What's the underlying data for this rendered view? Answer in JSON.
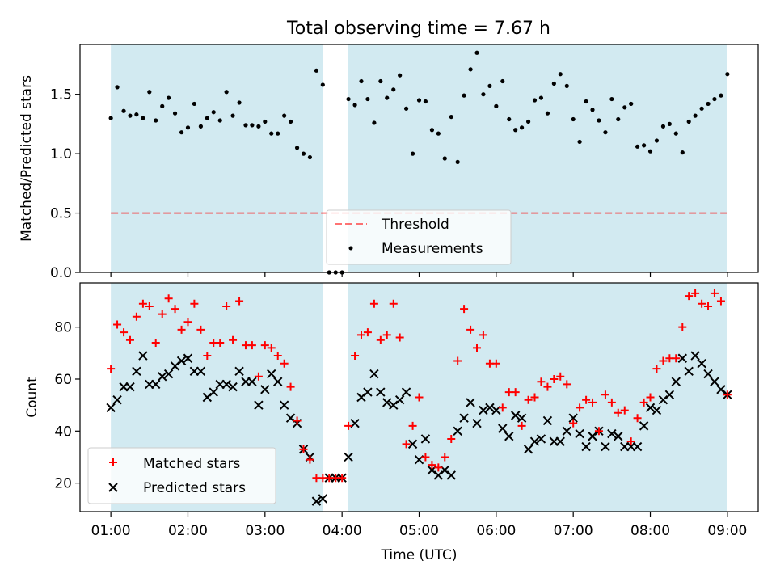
{
  "title": "Total observing time = 7.67 h",
  "colors": {
    "shade": "#add8e6",
    "threshold": "#ff0000",
    "measurements": "#000000",
    "matched": "#ff0000",
    "predicted": "#000000"
  },
  "chart_data": [
    {
      "type": "scatter",
      "ylabel": "Matched/Predicted stars",
      "xlim": [
        0.6,
        9.4
      ],
      "ylim": [
        0,
        1.92
      ],
      "yticks": [
        "0.0",
        "0.5",
        "1.0",
        "1.5"
      ],
      "ytick_values": [
        0,
        0.5,
        1.0,
        1.5
      ],
      "shaded_intervals": [
        [
          1.0,
          3.75
        ],
        [
          4.08,
          9.0
        ]
      ],
      "threshold": {
        "name": "Threshold",
        "y": 0.5,
        "x": [
          1.0,
          9.0
        ]
      },
      "legend": [
        "Threshold",
        "Measurements"
      ],
      "legend_position": "lower-center",
      "series": [
        {
          "name": "Measurements",
          "x": [
            1.0,
            1.083,
            1.167,
            1.25,
            1.333,
            1.417,
            1.5,
            1.583,
            1.667,
            1.75,
            1.833,
            1.917,
            2.0,
            2.083,
            2.167,
            2.25,
            2.333,
            2.417,
            2.5,
            2.583,
            2.667,
            2.75,
            2.833,
            2.917,
            3.0,
            3.083,
            3.167,
            3.25,
            3.333,
            3.417,
            3.5,
            3.583,
            3.667,
            3.75,
            3.833,
            3.917,
            4.0,
            4.083,
            4.167,
            4.25,
            4.333,
            4.417,
            4.5,
            4.583,
            4.667,
            4.75,
            4.833,
            4.917,
            5.0,
            5.083,
            5.167,
            5.25,
            5.333,
            5.417,
            5.5,
            5.583,
            5.667,
            5.75,
            5.833,
            5.917,
            6.0,
            6.083,
            6.167,
            6.25,
            6.333,
            6.417,
            6.5,
            6.583,
            6.667,
            6.75,
            6.833,
            6.917,
            7.0,
            7.083,
            7.167,
            7.25,
            7.333,
            7.417,
            7.5,
            7.583,
            7.667,
            7.75,
            7.833,
            7.917,
            8.0,
            8.083,
            8.167,
            8.25,
            8.333,
            8.417,
            8.5,
            8.583,
            8.667,
            8.75,
            8.833,
            8.917,
            9.0
          ],
          "y": [
            1.3,
            1.56,
            1.36,
            1.32,
            1.33,
            1.3,
            1.52,
            1.28,
            1.4,
            1.47,
            1.34,
            1.18,
            1.22,
            1.42,
            1.23,
            1.3,
            1.35,
            1.28,
            1.52,
            1.32,
            1.43,
            1.24,
            1.24,
            1.23,
            1.27,
            1.17,
            1.17,
            1.32,
            1.27,
            1.05,
            1.0,
            0.97,
            1.7,
            1.58,
            0.0,
            0.0,
            0.0,
            1.46,
            1.41,
            1.61,
            1.46,
            1.26,
            1.61,
            1.47,
            1.54,
            1.66,
            1.38,
            1.0,
            1.45,
            1.44,
            1.2,
            1.17,
            0.96,
            1.31,
            0.93,
            1.49,
            1.71,
            1.85,
            1.5,
            1.57,
            1.4,
            1.61,
            1.29,
            1.2,
            1.22,
            1.27,
            1.45,
            1.47,
            1.34,
            1.59,
            1.67,
            1.57,
            1.29,
            1.1,
            1.44,
            1.37,
            1.28,
            1.18,
            1.46,
            1.29,
            1.39,
            1.42,
            1.06,
            1.07,
            1.02,
            1.11,
            1.23,
            1.25,
            1.17,
            1.01,
            1.27,
            1.32,
            1.38,
            1.42,
            1.46,
            1.49,
            1.67
          ]
        }
      ]
    },
    {
      "type": "scatter",
      "xlabel": "Time (UTC)",
      "ylabel": "Count",
      "xlim": [
        0.6,
        9.4
      ],
      "ylim": [
        9,
        97
      ],
      "yticks": [
        "20",
        "40",
        "60",
        "80"
      ],
      "ytick_values": [
        20,
        40,
        60,
        80
      ],
      "xticks": [
        "01:00",
        "02:00",
        "03:00",
        "04:00",
        "05:00",
        "06:00",
        "07:00",
        "08:00",
        "09:00"
      ],
      "xtick_values": [
        1,
        2,
        3,
        4,
        5,
        6,
        7,
        8,
        9
      ],
      "shaded_intervals": [
        [
          1.0,
          3.75
        ],
        [
          4.08,
          9.0
        ]
      ],
      "legend": [
        "Matched stars",
        "Predicted stars"
      ],
      "legend_position": "lower-left",
      "series": [
        {
          "name": "Matched stars",
          "marker": "plus",
          "x": [
            1.0,
            1.083,
            1.167,
            1.25,
            1.333,
            1.417,
            1.5,
            1.583,
            1.667,
            1.75,
            1.833,
            1.917,
            2.0,
            2.083,
            2.167,
            2.25,
            2.333,
            2.417,
            2.5,
            2.583,
            2.667,
            2.75,
            2.833,
            2.917,
            3.0,
            3.083,
            3.167,
            3.25,
            3.333,
            3.417,
            3.5,
            3.583,
            3.667,
            3.75,
            3.833,
            3.917,
            4.0,
            4.083,
            4.167,
            4.25,
            4.333,
            4.417,
            4.5,
            4.583,
            4.667,
            4.75,
            4.833,
            4.917,
            5.0,
            5.083,
            5.167,
            5.25,
            5.333,
            5.417,
            5.5,
            5.583,
            5.667,
            5.75,
            5.833,
            5.917,
            6.0,
            6.083,
            6.167,
            6.25,
            6.333,
            6.417,
            6.5,
            6.583,
            6.667,
            6.75,
            6.833,
            6.917,
            7.0,
            7.083,
            7.167,
            7.25,
            7.333,
            7.417,
            7.5,
            7.583,
            7.667,
            7.75,
            7.833,
            7.917,
            8.0,
            8.083,
            8.167,
            8.25,
            8.333,
            8.417,
            8.5,
            8.583,
            8.667,
            8.75,
            8.833,
            8.917,
            9.0
          ],
          "y": [
            64,
            81,
            78,
            75,
            84,
            89,
            88,
            74,
            85,
            91,
            87,
            79,
            82,
            89,
            79,
            69,
            74,
            74,
            88,
            75,
            90,
            73,
            73,
            61,
            73,
            72,
            69,
            66,
            57,
            44,
            33,
            29,
            22,
            22,
            22,
            22,
            22,
            42,
            69,
            77,
            78,
            89,
            75,
            77,
            89,
            76,
            35,
            42,
            53,
            30,
            27,
            26,
            30,
            37,
            67,
            87,
            79,
            72,
            77,
            66,
            66,
            49,
            55,
            55,
            42,
            52,
            53,
            59,
            57,
            60,
            61,
            58,
            43,
            49,
            52,
            51,
            40,
            54,
            51,
            47,
            48,
            36,
            45,
            51,
            53,
            64,
            67,
            68,
            68,
            80,
            92,
            93,
            89,
            88,
            93,
            90,
            54
          ]
        },
        {
          "name": "Predicted stars",
          "marker": "x",
          "x": [
            1.0,
            1.083,
            1.167,
            1.25,
            1.333,
            1.417,
            1.5,
            1.583,
            1.667,
            1.75,
            1.833,
            1.917,
            2.0,
            2.083,
            2.167,
            2.25,
            2.333,
            2.417,
            2.5,
            2.583,
            2.667,
            2.75,
            2.833,
            2.917,
            3.0,
            3.083,
            3.167,
            3.25,
            3.333,
            3.417,
            3.5,
            3.583,
            3.667,
            3.75,
            3.833,
            3.917,
            4.0,
            4.083,
            4.167,
            4.25,
            4.333,
            4.417,
            4.5,
            4.583,
            4.667,
            4.75,
            4.833,
            4.917,
            5.0,
            5.083,
            5.167,
            5.25,
            5.333,
            5.417,
            5.5,
            5.583,
            5.667,
            5.75,
            5.833,
            5.917,
            6.0,
            6.083,
            6.167,
            6.25,
            6.333,
            6.417,
            6.5,
            6.583,
            6.667,
            6.75,
            6.833,
            6.917,
            7.0,
            7.083,
            7.167,
            7.25,
            7.333,
            7.417,
            7.5,
            7.583,
            7.667,
            7.75,
            7.833,
            7.917,
            8.0,
            8.083,
            8.167,
            8.25,
            8.333,
            8.417,
            8.5,
            8.583,
            8.667,
            8.75,
            8.833,
            8.917,
            9.0
          ],
          "y": [
            49,
            52,
            57,
            57,
            63,
            69,
            58,
            58,
            61,
            62,
            65,
            67,
            68,
            63,
            63,
            53,
            55,
            58,
            58,
            57,
            63,
            59,
            59,
            50,
            56,
            62,
            59,
            50,
            45,
            43,
            33,
            30,
            13,
            14,
            22,
            22,
            22,
            30,
            43,
            53,
            55,
            62,
            55,
            51,
            50,
            52,
            55,
            35,
            29,
            37,
            25,
            23,
            25,
            23,
            40,
            45,
            51,
            43,
            48,
            49,
            48,
            41,
            38,
            46,
            45,
            33,
            36,
            37,
            44,
            36,
            36,
            40,
            45,
            39,
            34,
            38,
            40,
            34,
            39,
            38,
            34,
            34,
            34,
            42,
            49,
            48,
            52,
            54,
            59,
            68,
            63,
            69,
            66,
            62,
            59,
            56,
            54
          ]
        }
      ]
    }
  ]
}
